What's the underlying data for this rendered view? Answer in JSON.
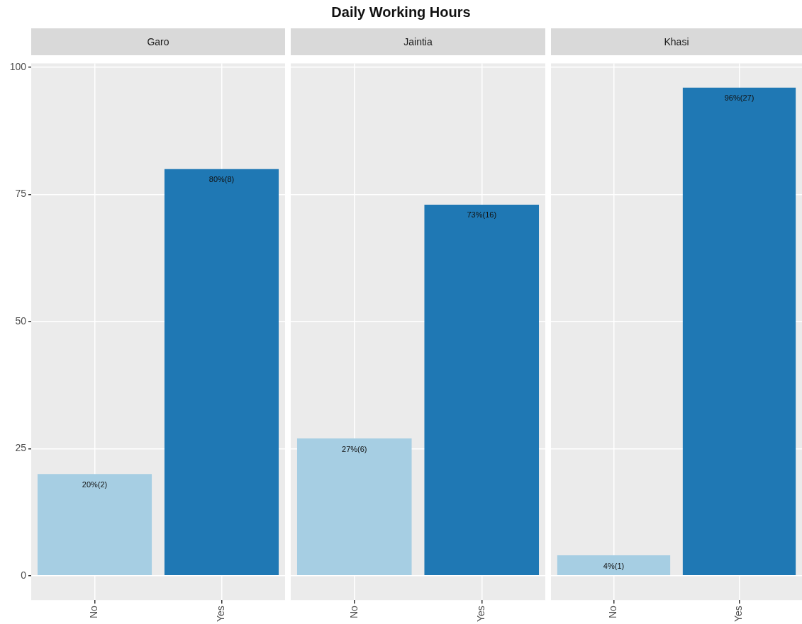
{
  "chart_data": [
    {
      "type": "bar",
      "subtitle": "Garo",
      "categories": [
        "No",
        "Yes"
      ],
      "values": [
        20,
        80
      ],
      "colors": [
        "#a6cee3",
        "#1f78b4"
      ],
      "value_labels": [
        "20%(2)",
        "80%(8)"
      ],
      "ylim": [
        -4.8,
        100.8
      ],
      "yticks": [
        0,
        25,
        50,
        75,
        100
      ],
      "grid": true,
      "legend": false
    },
    {
      "type": "bar",
      "title": "Daily Working Hours",
      "subtitle": "Jaintia",
      "categories": [
        "No",
        "Yes"
      ],
      "values": [
        27,
        73
      ],
      "colors": [
        "#a6cee3",
        "#1f78b4"
      ],
      "value_labels": [
        "27%(6)",
        "73%(16)"
      ],
      "ylim": [
        -4.8,
        100.8
      ],
      "yticks": [
        0,
        25,
        50,
        75,
        100
      ],
      "grid": true,
      "legend": false,
      "tick_labels": "x"
    },
    {
      "type": "bar",
      "subtitle": "Khasi",
      "categories": [
        "No",
        "Yes"
      ],
      "values": [
        4,
        96
      ],
      "colors": [
        "#a6cee3",
        "#1f78b4"
      ],
      "value_labels": [
        "4%(1)",
        "96%(27)"
      ],
      "ylim": [
        -4.8,
        100.8
      ],
      "yticks": [
        0,
        25,
        50,
        75,
        100
      ],
      "grid": true,
      "legend": false,
      "tick_labels": "x"
    }
  ]
}
